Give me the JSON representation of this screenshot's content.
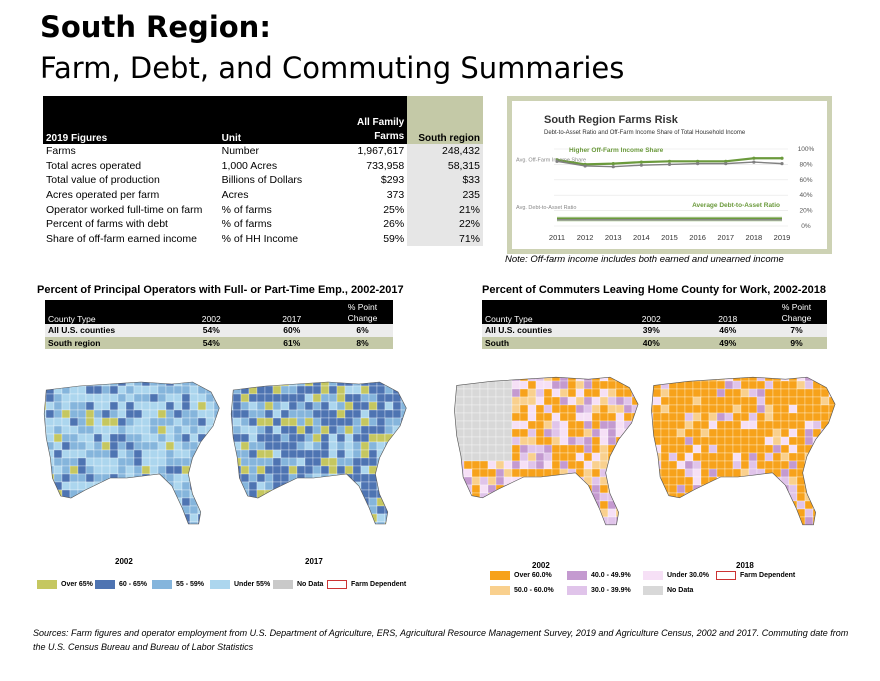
{
  "title": {
    "line1": "South Region:",
    "line2": "Farm, Debt, and Commuting Summaries"
  },
  "farm_table": {
    "headers": [
      "2019 Figures",
      "Unit",
      "All Family Farms",
      "South region"
    ],
    "rows": [
      [
        "Farms",
        "Number",
        "1,967,617",
        "248,432"
      ],
      [
        "Total acres operated",
        "1,000 Acres",
        "733,958",
        "58,315"
      ],
      [
        "Total value of production",
        "Billions of Dollars",
        "$293",
        "$33"
      ],
      [
        "Acres operated per farm",
        "Acres",
        "373",
        "235"
      ],
      [
        "Operator worked full-time on farm",
        "% of farms",
        "25%",
        "21%"
      ],
      [
        "Percent of farms with debt",
        "% of farms",
        "26%",
        "22%"
      ],
      [
        "Share of off-farm earned income",
        "% of HH Income",
        "59%",
        "71%"
      ]
    ]
  },
  "chart_data": {
    "type": "line",
    "title": "South Region Farms Risk",
    "subtitle": "Debt-to-Asset Ratio and Off-Farm Income Share of Total Household Income",
    "x": [
      2011,
      2012,
      2013,
      2014,
      2015,
      2016,
      2017,
      2018,
      2019
    ],
    "ylim": [
      0,
      100
    ],
    "yticks": [
      "0%",
      "20%",
      "40%",
      "60%",
      "80%",
      "100%"
    ],
    "ylabels": {
      "top": "Avg. Off-Farm Income Share",
      "bottom": "Avg. Debt-to-Asset Ratio"
    },
    "series": [
      {
        "name": "Higher Off-Farm Income Share",
        "color": "#6b9a3c",
        "values": [
          86,
          80,
          81,
          83,
          84,
          84,
          84,
          88,
          88
        ]
      },
      {
        "name": "Avg. Off-Farm Income Share",
        "color": "#808080",
        "values": [
          84,
          78,
          77,
          79,
          80,
          81,
          81,
          83,
          81
        ]
      },
      {
        "name": "Average Debt-to-Asset Ratio",
        "color": "#6b9a3c",
        "values": [
          10,
          10,
          10,
          10,
          10,
          10,
          10,
          10,
          10
        ]
      },
      {
        "name": "Avg. Debt-to-Asset Ratio",
        "color": "#808080",
        "values": [
          8,
          8,
          8,
          8,
          8,
          8,
          8,
          8,
          8
        ]
      }
    ]
  },
  "risk_note": "Note: Off-farm income includes both earned and unearned income",
  "emp": {
    "title": "Percent of Principal Operators with Full- or Part-Time Emp., 2002-2017",
    "headers": [
      "County Type",
      "2002",
      "2017",
      "% Point Change"
    ],
    "rows": [
      [
        "All U.S. counties",
        "54%",
        "60%",
        "6%"
      ],
      [
        "South region",
        "54%",
        "61%",
        "8%"
      ]
    ],
    "years": [
      "2002",
      "2017"
    ],
    "legend": [
      {
        "label": "Over 65%",
        "color": "#c5c760"
      },
      {
        "label": "60 - 65%",
        "color": "#4e74b2"
      },
      {
        "label": "55 - 59%",
        "color": "#85b5dc"
      },
      {
        "label": "Under 55%",
        "color": "#acd6ee"
      },
      {
        "label": "No Data",
        "color": "#c9c9c9"
      },
      {
        "label": "Farm Dependent",
        "color": "#ffffff"
      }
    ]
  },
  "com": {
    "title": "Percent of Commuters Leaving Home County for Work, 2002-2018",
    "headers": [
      "County Type",
      "2002",
      "2018",
      "% Point Change"
    ],
    "rows": [
      [
        "All U.S. counties",
        "39%",
        "46%",
        "7%"
      ],
      [
        "South",
        "40%",
        "49%",
        "9%"
      ]
    ],
    "years": [
      "2002",
      "2018"
    ],
    "legend": [
      {
        "label": "Over 60.0%",
        "color": "#f7a21b"
      },
      {
        "label": "50.0 - 60.0%",
        "color": "#f9d08e"
      },
      {
        "label": "40.0 - 49.9%",
        "color": "#c49ad0"
      },
      {
        "label": "30.0 - 39.9%",
        "color": "#e0c4ea"
      },
      {
        "label": "Under 30.0%",
        "color": "#f6e0f6"
      },
      {
        "label": "No Data",
        "color": "#d8d8d8"
      },
      {
        "label": "Farm Dependent",
        "color": "#ffffff"
      }
    ]
  },
  "sources": "Sources: Farm figures and operator employment from U.S. Department of Agriculture, ERS, Agricultural Resource Management Survey, 2019 and Agriculture Census, 2002 and 2017. Commuting date from the U.S. Census Bureau and Bureau of Labor Statistics"
}
